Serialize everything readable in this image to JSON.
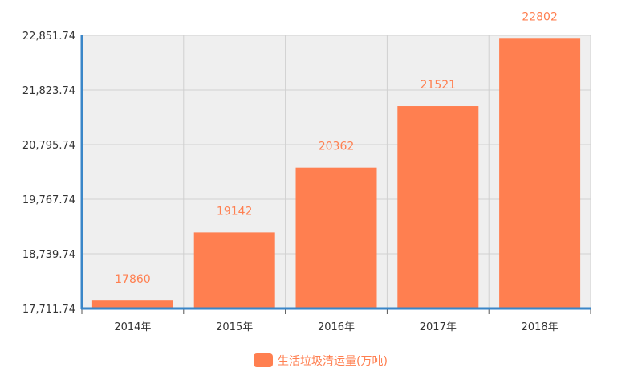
{
  "chart_data": {
    "type": "bar",
    "categories": [
      "2014年",
      "2015年",
      "2016年",
      "2017年",
      "2018年"
    ],
    "series": [
      {
        "name": "生活垃圾清运量(万吨)",
        "values": [
          17860,
          19142,
          20362,
          21521,
          22802
        ]
      }
    ],
    "data_labels": [
      "17860",
      "19142",
      "20362",
      "21521",
      "22802"
    ],
    "ylim": [
      17711.74,
      22851.74
    ],
    "yticks": [
      "17,711.74",
      "18,739.74",
      "19,767.74",
      "20,795.74",
      "21,823.74",
      "22,851.74"
    ],
    "grid": true,
    "legend": {
      "position": "bottom",
      "label": "生活垃圾清运量(万吨)"
    },
    "colors": {
      "bar": "#ff7f50",
      "axis": "#3a86c8",
      "plot_bg": "#efefef",
      "grid": "#d0d0d0"
    }
  }
}
